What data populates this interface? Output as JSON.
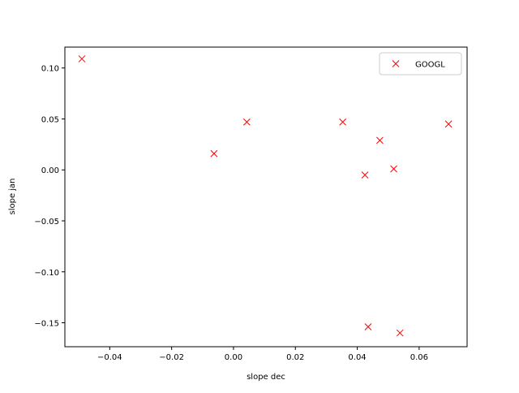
{
  "chart_data": {
    "type": "scatter",
    "xlabel": "slope dec",
    "ylabel": "slope jan",
    "xlim": [
      -0.0545,
      0.0755
    ],
    "ylim": [
      -0.1735,
      0.1205
    ],
    "xticks": [
      -0.04,
      -0.02,
      0.0,
      0.02,
      0.04,
      0.06
    ],
    "xtick_labels": [
      "−0.04",
      "−0.02",
      "0.00",
      "0.02",
      "0.04",
      "0.06"
    ],
    "yticks": [
      -0.15,
      -0.1,
      -0.05,
      0.0,
      0.05,
      0.1
    ],
    "ytick_labels": [
      "−0.15",
      "−0.10",
      "−0.05",
      "0.00",
      "0.05",
      "0.10"
    ],
    "grid": false,
    "legend_placement": "top-right",
    "series": [
      {
        "name": "GOOGL",
        "marker": "x",
        "color": "#ff0000",
        "x": [
          -0.049,
          -0.0063,
          0.0043,
          0.0353,
          0.0425,
          0.0435,
          0.0473,
          0.0518,
          0.0538,
          0.0695
        ],
        "y": [
          0.109,
          0.016,
          0.047,
          0.047,
          -0.005,
          -0.154,
          0.029,
          0.001,
          -0.16,
          0.045
        ]
      }
    ]
  }
}
